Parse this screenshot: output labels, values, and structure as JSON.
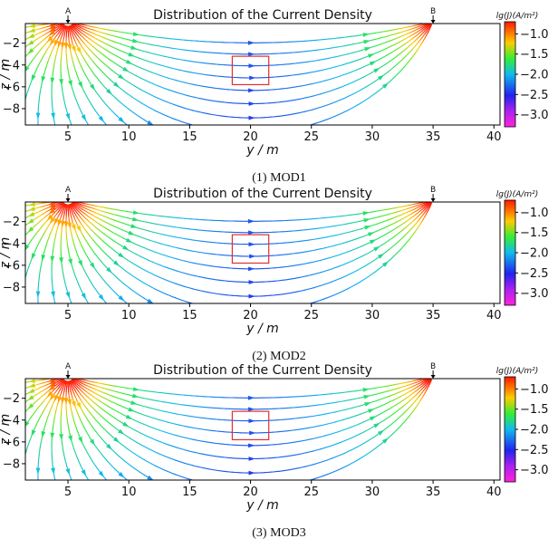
{
  "chart_data": [
    {
      "type": "streamplot",
      "title": "Distribution of the Current Density",
      "caption": "(1) MOD1",
      "xlabel": "y / m",
      "ylabel": "z / m",
      "xlim": [
        1.5,
        40.5
      ],
      "ylim": [
        -9.5,
        -0.2
      ],
      "xticks": [
        5,
        10,
        15,
        20,
        25,
        30,
        35,
        40
      ],
      "yticks": [
        -2,
        -4,
        -6,
        -8
      ],
      "electrodes": [
        {
          "label": "A",
          "y": 5
        },
        {
          "label": "B",
          "y": 35
        }
      ],
      "anomaly_box": {
        "y": [
          18.5,
          21.5
        ],
        "z": [
          -5.8,
          -3.2
        ]
      },
      "colorbar": {
        "label": "lg(J)(A/m²)",
        "ticks": [
          -1.0,
          -1.5,
          -2.0,
          -2.5,
          -3.0
        ],
        "range": [
          -3.3,
          -0.7
        ]
      }
    },
    {
      "type": "streamplot",
      "title": "Distribution of the Current Density",
      "caption": "(2) MOD2",
      "xlabel": "y / m",
      "ylabel": "z / m",
      "xlim": [
        1.5,
        40.5
      ],
      "ylim": [
        -9.5,
        -0.2
      ],
      "xticks": [
        5,
        10,
        15,
        20,
        25,
        30,
        35,
        40
      ],
      "yticks": [
        -2,
        -4,
        -6,
        -8
      ],
      "electrodes": [
        {
          "label": "A",
          "y": 5
        },
        {
          "label": "B",
          "y": 35
        }
      ],
      "anomaly_box": {
        "y": [
          18.5,
          21.5
        ],
        "z": [
          -5.8,
          -3.2
        ]
      },
      "colorbar": {
        "label": "lg(J)(A/m²)",
        "ticks": [
          -1.0,
          -1.5,
          -2.0,
          -2.5,
          -3.0
        ],
        "range": [
          -3.3,
          -0.7
        ]
      }
    },
    {
      "type": "streamplot",
      "title": "Distribution of the Current Density",
      "caption": "(3) MOD3",
      "xlabel": "y / m",
      "ylabel": "z / m",
      "xlim": [
        1.5,
        40.5
      ],
      "ylim": [
        -9.5,
        -0.2
      ],
      "xticks": [
        5,
        10,
        15,
        20,
        25,
        30,
        35,
        40
      ],
      "yticks": [
        -2,
        -4,
        -6,
        -8
      ],
      "electrodes": [
        {
          "label": "A",
          "y": 5
        },
        {
          "label": "B",
          "y": 35
        }
      ],
      "anomaly_box": {
        "y": [
          18.5,
          21.5
        ],
        "z": [
          -5.8,
          -3.2
        ]
      },
      "colorbar": {
        "label": "lg(J)(A/m²)",
        "ticks": [
          -1.0,
          -1.5,
          -2.0,
          -2.5,
          -3.0
        ],
        "range": [
          -3.3,
          -0.7
        ]
      }
    }
  ]
}
